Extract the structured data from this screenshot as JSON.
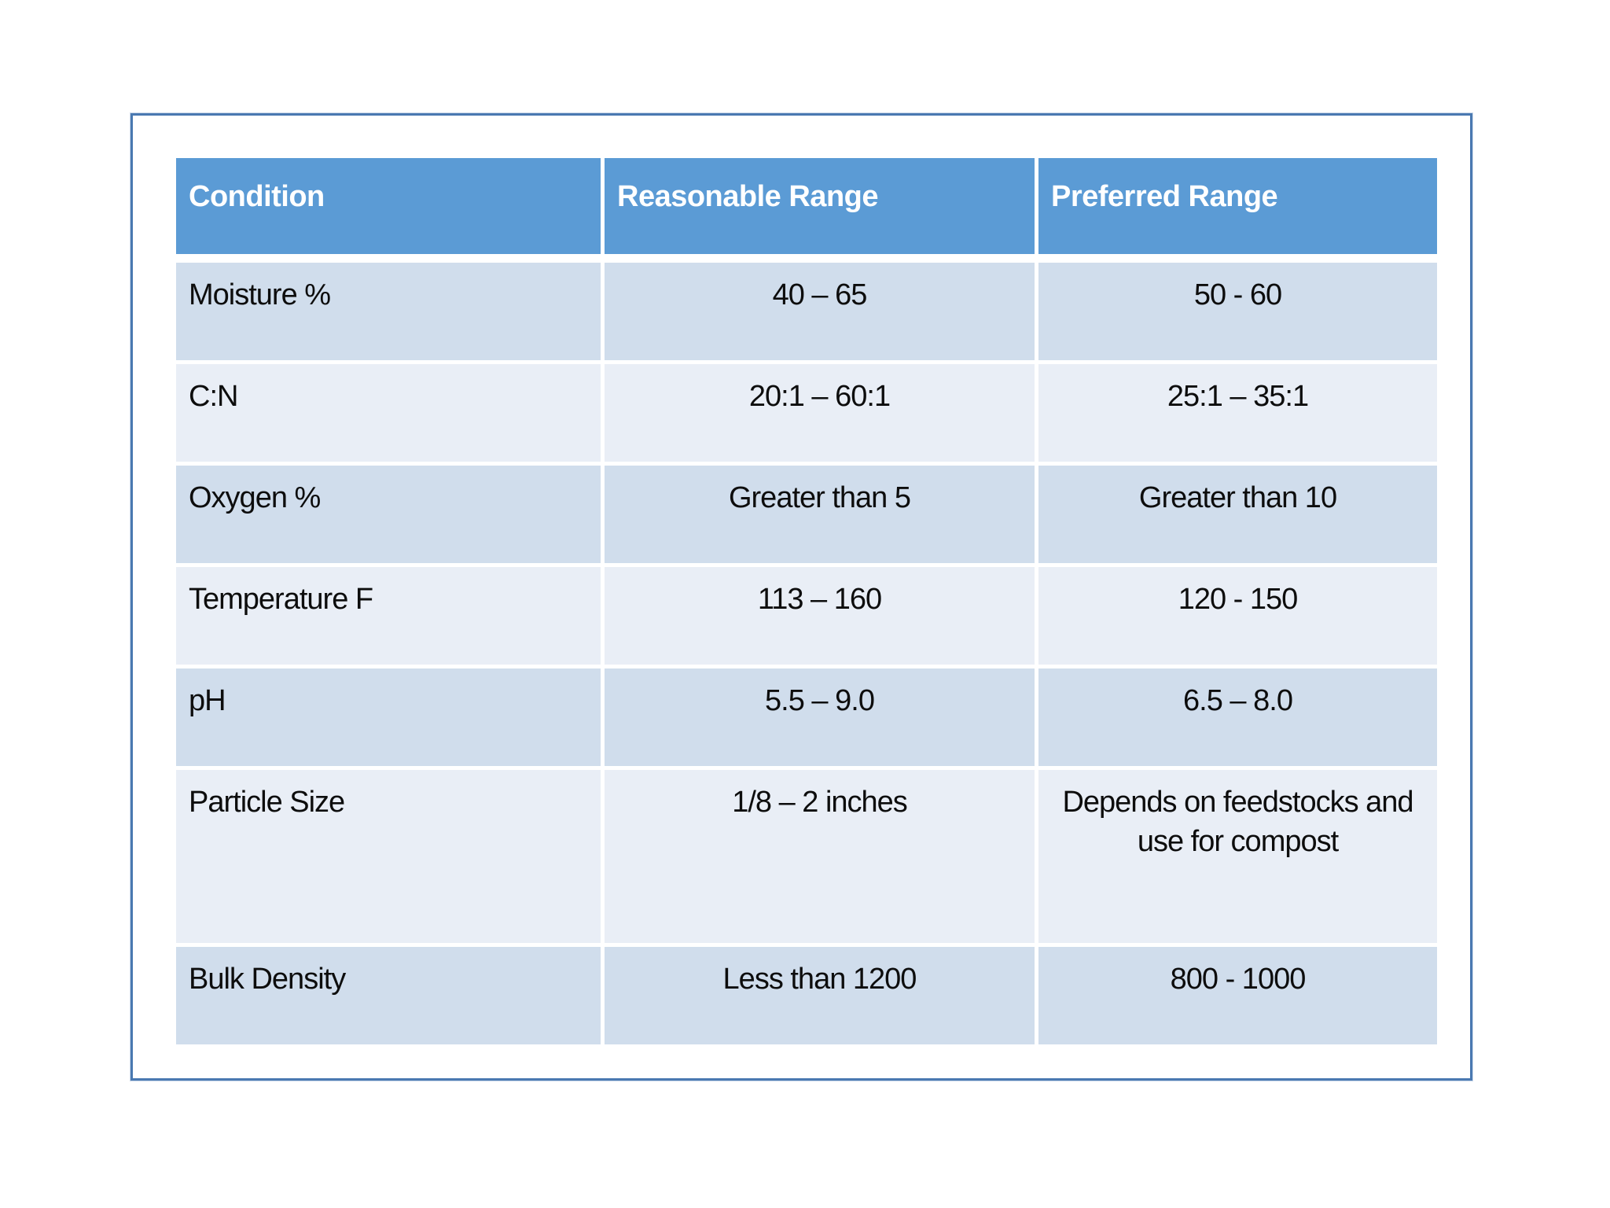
{
  "table": {
    "headers": [
      "Condition",
      "Reasonable Range",
      "Preferred Range"
    ],
    "rows": [
      {
        "condition": "Moisture %",
        "reasonable": "40 – 65",
        "preferred": "50 - 60"
      },
      {
        "condition": "C:N",
        "reasonable": "20:1 – 60:1",
        "preferred": "25:1 – 35:1"
      },
      {
        "condition": "Oxygen %",
        "reasonable": "Greater than 5",
        "preferred": "Greater than 10"
      },
      {
        "condition": "Temperature F",
        "reasonable": "113 – 160",
        "preferred": "120 - 150"
      },
      {
        "condition": "pH",
        "reasonable": "5.5 – 9.0",
        "preferred": "6.5 – 8.0"
      },
      {
        "condition": "Particle Size",
        "reasonable": "1/8 – 2 inches",
        "preferred": "Depends on feedstocks and use for compost"
      },
      {
        "condition": "Bulk Density",
        "reasonable": "Less than 1200",
        "preferred": "800 - 1000"
      }
    ],
    "colors": {
      "header_bg": "#5b9bd5",
      "header_text": "#ffffff",
      "row_dark": "#d0ddec",
      "row_light": "#e9eef6",
      "frame_border": "#4a79b1",
      "body_text": "#0d0d0d"
    }
  }
}
